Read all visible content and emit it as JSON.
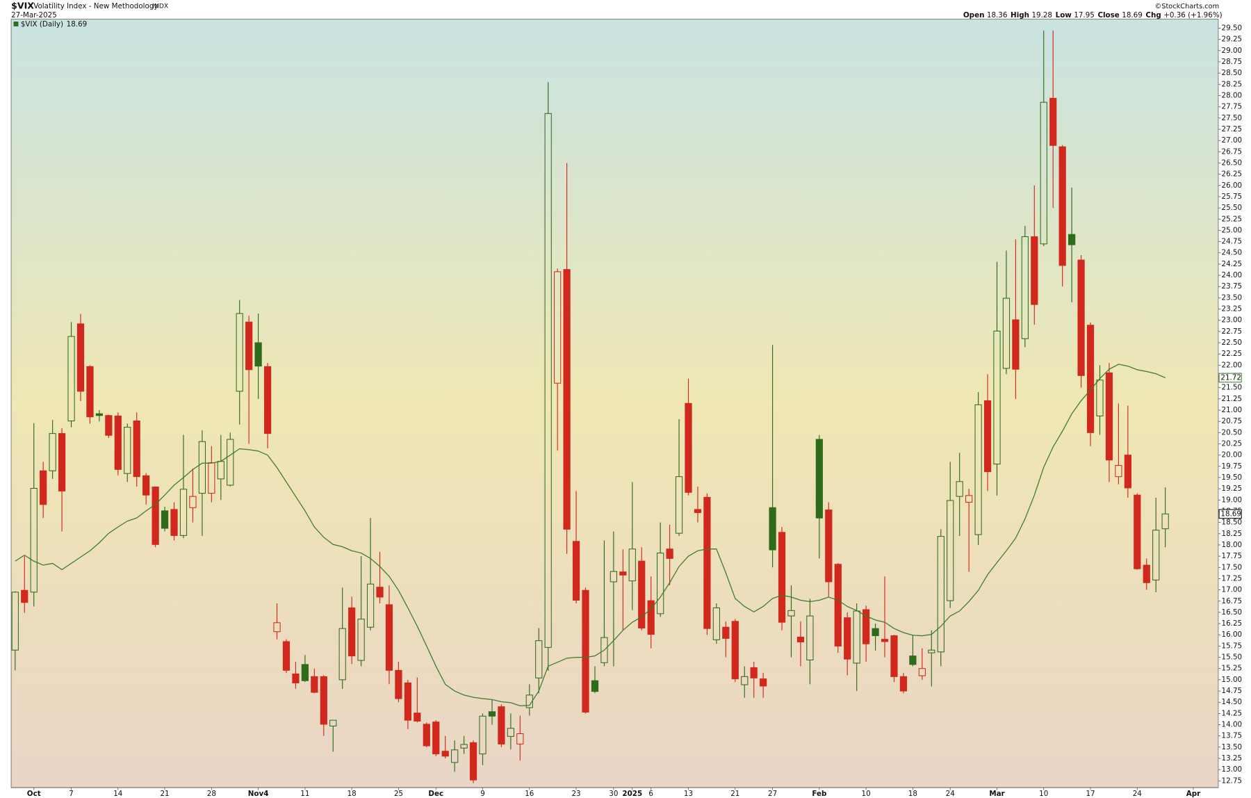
{
  "chart_data": {
    "type": "candlestick",
    "title": "$VIX",
    "subtitle": "Volatility Index - New Methodology",
    "exchange": "INDX",
    "date": "27-Mar-2025",
    "source": "©StockCharts.com",
    "quote_labels": {
      "open": "Open",
      "high": "High",
      "low": "Low",
      "close": "Close",
      "change": "Chg"
    },
    "change": "+0.36 (+1.96%)",
    "categories": [
      null,
      null,
      "Oct",
      null,
      null,
      null,
      "7",
      null,
      null,
      null,
      null,
      "14",
      null,
      null,
      null,
      null,
      "21",
      null,
      null,
      null,
      null,
      "28",
      null,
      null,
      null,
      null,
      "Nov4",
      null,
      null,
      null,
      null,
      "11",
      null,
      null,
      null,
      null,
      "18",
      null,
      null,
      null,
      null,
      "25",
      null,
      null,
      null,
      "Dec",
      null,
      null,
      null,
      null,
      "9",
      null,
      null,
      null,
      null,
      "16",
      null,
      null,
      null,
      null,
      "23",
      null,
      null,
      null,
      "30",
      null,
      "2025",
      null,
      "6",
      null,
      null,
      null,
      "13",
      null,
      null,
      null,
      null,
      "21",
      null,
      null,
      null,
      "27",
      null,
      null,
      null,
      null,
      "Feb",
      null,
      null,
      null,
      null,
      "10",
      null,
      null,
      null,
      null,
      "18",
      null,
      null,
      null,
      "24",
      null,
      null,
      null,
      null,
      "Mar",
      null,
      null,
      null,
      null,
      "10",
      null,
      null,
      null,
      null,
      "17",
      null,
      null,
      null,
      null,
      "24",
      null,
      null,
      null,
      null,
      null,
      "Apr"
    ],
    "series": [
      {
        "name": "$VIX (Daily)",
        "up_color": "#2e6b1a",
        "down_color": "#d0281c",
        "open": [
          15.66,
          16.99,
          16.95,
          19.65,
          19.65,
          20.48,
          20.76,
          22.92,
          21.97,
          20.92,
          20.88,
          20.87,
          19.59,
          20.76,
          19.54,
          19.29,
          18.76,
          18.79,
          18.21,
          18.83,
          19.15,
          19.15,
          19.47,
          19.33,
          21.42,
          22.96,
          22.5,
          21.97,
          16.07,
          15.85,
          15.13,
          15.34,
          15.07,
          15.07,
          13.97,
          15.0,
          16.6,
          15.43,
          16.17,
          17.06,
          16.67,
          15.21,
          14.93,
          14.26,
          14.01,
          14.06,
          13.41,
          13.16,
          13.48,
          13.6,
          13.35,
          14.29,
          14.4,
          13.74,
          13.57,
          14.38,
          15.04,
          15.72,
          21.6,
          24.13,
          18.08,
          16.99,
          14.98,
          15.38,
          17.18,
          17.4,
          17.2,
          17.64,
          16.76,
          16.47,
          17.91,
          18.26,
          21.15,
          18.79,
          19.06,
          15.89,
          16.17,
          16.3,
          14.89,
          15.27,
          15.02,
          18.83,
          18.28,
          16.42,
          15.95,
          15.44,
          20.35,
          18.78,
          17.57,
          16.38,
          15.37,
          16.56,
          16.14,
          15.9,
          15.98,
          15.07,
          15.53,
          15.09,
          15.6,
          15.62,
          16.76,
          19.08,
          18.95,
          18.23,
          21.21,
          19.8,
          21.93,
          23.01,
          22.59,
          24.86,
          24.7,
          27.94,
          26.86,
          24.91,
          24.34,
          22.89,
          20.87,
          21.83,
          19.52,
          20.0,
          19.11,
          17.55,
          17.22,
          18.36,
          null,
          null,
          null
        ],
        "high": [
          16.97,
          17.75,
          20.71,
          19.85,
          20.78,
          20.6,
          22.96,
          23.14,
          22.0,
          21.0,
          20.9,
          20.95,
          20.7,
          20.95,
          19.6,
          19.3,
          18.85,
          18.95,
          20.45,
          19.7,
          20.55,
          20.2,
          20.45,
          20.5,
          23.45,
          23.1,
          23.15,
          22.05,
          16.7,
          15.9,
          15.4,
          15.55,
          15.25,
          15.1,
          14.1,
          17.05,
          16.85,
          17.75,
          18.6,
          17.85,
          17.1,
          15.4,
          15.0,
          15.05,
          14.05,
          14.1,
          13.75,
          13.65,
          13.75,
          13.65,
          14.25,
          14.55,
          14.45,
          14.25,
          14.2,
          14.9,
          16.15,
          28.3,
          24.15,
          26.5,
          19.2,
          17.05,
          15.3,
          18.1,
          18.3,
          17.9,
          19.4,
          17.95,
          17.3,
          18.5,
          18.45,
          20.8,
          21.7,
          19.3,
          19.15,
          16.7,
          16.3,
          16.35,
          15.3,
          15.4,
          15.15,
          22.45,
          18.4,
          17.1,
          16.3,
          16.8,
          20.45,
          18.95,
          17.6,
          16.5,
          16.7,
          16.65,
          16.25,
          17.3,
          16.0,
          15.15,
          16.0,
          15.7,
          16.1,
          18.35,
          19.85,
          20.05,
          19.25,
          21.4,
          21.8,
          24.3,
          24.55,
          24.8,
          25.1,
          26.0,
          29.45,
          29.45,
          26.9,
          25.95,
          24.45,
          22.95,
          22.0,
          22.05,
          21.15,
          21.1,
          19.15,
          17.7,
          19.05,
          19.28,
          null,
          null,
          null
        ],
        "low": [
          15.21,
          16.49,
          16.63,
          18.6,
          19.47,
          18.3,
          20.62,
          21.2,
          20.7,
          20.75,
          20.38,
          19.55,
          19.4,
          19.3,
          18.9,
          17.95,
          18.3,
          18.1,
          18.15,
          18.5,
          18.2,
          18.95,
          19.0,
          19.3,
          20.68,
          20.25,
          21.25,
          20.15,
          15.9,
          15.15,
          14.8,
          14.95,
          14.7,
          13.75,
          13.4,
          14.8,
          15.35,
          15.3,
          16.1,
          16.7,
          14.9,
          14.5,
          13.9,
          14.05,
          13.5,
          13.3,
          13.25,
          12.95,
          13.35,
          12.7,
          13.1,
          14.0,
          13.5,
          13.45,
          13.2,
          14.2,
          14.7,
          15.2,
          20.1,
          17.8,
          16.7,
          14.25,
          14.7,
          15.3,
          15.3,
          16.1,
          16.55,
          16.1,
          15.7,
          16.4,
          17.1,
          18.2,
          19.1,
          18.5,
          16.0,
          15.8,
          15.5,
          14.95,
          14.6,
          14.6,
          14.6,
          17.5,
          16.1,
          15.5,
          15.3,
          14.9,
          17.7,
          16.85,
          15.6,
          15.1,
          14.75,
          15.4,
          15.65,
          15.5,
          14.95,
          14.7,
          15.3,
          15.0,
          14.85,
          15.3,
          16.6,
          18.2,
          17.4,
          18.0,
          19.2,
          19.1,
          21.8,
          21.25,
          22.4,
          22.9,
          24.65,
          25.5,
          23.75,
          23.4,
          21.5,
          20.2,
          20.45,
          19.4,
          19.35,
          19.05,
          17.45,
          17.0,
          16.95,
          17.95,
          null,
          null,
          null
        ],
        "close": [
          16.95,
          16.72,
          19.26,
          18.9,
          20.48,
          19.2,
          22.64,
          21.42,
          20.85,
          20.88,
          20.44,
          19.68,
          20.62,
          19.52,
          19.11,
          18.01,
          18.37,
          18.21,
          19.24,
          19.08,
          20.3,
          19.83,
          19.86,
          20.35,
          23.15,
          21.9,
          21.98,
          20.48,
          16.27,
          15.21,
          14.93,
          14.98,
          14.72,
          14.01,
          14.1,
          16.14,
          15.53,
          16.35,
          17.13,
          16.84,
          15.21,
          14.58,
          14.1,
          14.08,
          13.53,
          13.35,
          13.3,
          13.44,
          13.56,
          12.77,
          14.19,
          14.19,
          13.57,
          13.92,
          13.8,
          14.66,
          15.87,
          27.6,
          24.08,
          18.35,
          16.77,
          14.28,
          14.74,
          15.94,
          17.41,
          17.33,
          17.91,
          16.15,
          16.01,
          17.82,
          17.7,
          19.52,
          19.17,
          18.72,
          16.14,
          16.6,
          15.92,
          15.02,
          15.07,
          15.04,
          14.86,
          17.89,
          16.28,
          16.54,
          15.84,
          16.42,
          18.6,
          17.18,
          15.75,
          15.46,
          16.53,
          15.8,
          15.98,
          15.85,
          15.07,
          14.75,
          15.34,
          15.25,
          15.66,
          18.19,
          18.99,
          19.41,
          19.1,
          21.12,
          19.63,
          22.76,
          23.49,
          21.91,
          24.86,
          23.35,
          27.85,
          26.89,
          24.22,
          24.68,
          21.77,
          20.5,
          21.67,
          19.89,
          19.77,
          19.27,
          17.47,
          17.16,
          18.33,
          18.69,
          null,
          null,
          null
        ]
      }
    ],
    "overlay": {
      "type": "line",
      "color": "#3d7a2a",
      "values": [
        17.64,
        17.77,
        17.64,
        17.55,
        17.59,
        17.45,
        17.59,
        17.73,
        17.87,
        18.05,
        18.26,
        18.4,
        18.53,
        18.6,
        18.76,
        18.9,
        19.11,
        19.33,
        19.5,
        19.68,
        19.82,
        19.82,
        19.86,
        20.0,
        20.14,
        20.12,
        20.09,
        20.0,
        19.72,
        19.4,
        19.08,
        18.76,
        18.4,
        18.17,
        18.01,
        17.96,
        17.87,
        17.82,
        17.7,
        17.52,
        17.3,
        16.99,
        16.6,
        16.19,
        15.75,
        15.3,
        14.9,
        14.75,
        14.66,
        14.61,
        14.58,
        14.56,
        14.51,
        14.49,
        14.42,
        14.43,
        14.75,
        15.3,
        15.39,
        15.48,
        15.5,
        15.5,
        15.53,
        15.66,
        15.87,
        16.1,
        16.28,
        16.4,
        16.58,
        16.84,
        17.16,
        17.52,
        17.75,
        17.87,
        17.91,
        17.91,
        17.38,
        16.81,
        16.63,
        16.51,
        16.63,
        16.81,
        16.88,
        16.84,
        16.77,
        16.74,
        16.77,
        16.84,
        16.77,
        16.63,
        16.54,
        16.42,
        16.33,
        16.28,
        16.14,
        16.05,
        15.99,
        15.98,
        16.01,
        16.19,
        16.42,
        16.53,
        16.74,
        16.99,
        17.34,
        17.61,
        17.87,
        18.15,
        18.58,
        19.11,
        19.73,
        20.18,
        20.53,
        20.92,
        21.21,
        21.45,
        21.7,
        21.91,
        22.02,
        21.98,
        21.9,
        21.86,
        21.81,
        21.72,
        null,
        null,
        null
      ]
    },
    "ylim": [
      12.6,
      29.7
    ],
    "yticks": [
      12.75,
      {
        "value": 13,
        "label": "13.00"
      },
      13.25,
      {
        "value": 13.5,
        "label": "13.50"
      },
      13.75,
      {
        "value": 14,
        "label": "14.00"
      },
      14.25,
      {
        "value": 14.5,
        "label": "14.50"
      },
      14.75,
      {
        "value": 15,
        "label": "15.00"
      },
      15.25,
      {
        "value": 15.5,
        "label": "15.50"
      },
      15.75,
      {
        "value": 16,
        "label": "16.00"
      },
      16.25,
      {
        "value": 16.5,
        "label": "16.50"
      },
      16.75,
      {
        "value": 17,
        "label": "17.00"
      },
      17.25,
      {
        "value": 17.5,
        "label": "17.50"
      },
      17.75,
      {
        "value": 18,
        "label": "18.00"
      },
      18.25,
      {
        "value": 18.5,
        "label": "18.50"
      },
      18.75,
      {
        "value": 19,
        "label": "19.00"
      },
      19.25,
      {
        "value": 19.5,
        "label": "19.50"
      },
      19.75,
      {
        "value": 20,
        "label": "20.00"
      },
      20.25,
      {
        "value": 20.5,
        "label": "20.50"
      },
      20.75,
      {
        "value": 21,
        "label": "21.00"
      },
      21.25,
      {
        "value": 21.5,
        "label": "21.50"
      },
      21.75,
      {
        "value": 22,
        "label": "22.00"
      },
      22.25,
      {
        "value": 22.5,
        "label": "22.50"
      },
      22.75,
      {
        "value": 23,
        "label": "23.00"
      },
      23.25,
      {
        "value": 23.5,
        "label": "23.50"
      },
      23.75,
      {
        "value": 24,
        "label": "24.00"
      },
      24.25,
      {
        "value": 24.5,
        "label": "24.50"
      },
      24.75,
      {
        "value": 25,
        "label": "25.00"
      },
      25.25,
      {
        "value": 25.5,
        "label": "25.50"
      },
      25.75,
      {
        "value": 26,
        "label": "26.00"
      },
      26.25,
      {
        "value": 26.5,
        "label": "26.50"
      },
      26.75,
      {
        "value": 27,
        "label": "27.00"
      },
      27.25,
      {
        "value": 27.5,
        "label": "27.50"
      },
      27.75,
      {
        "value": 28,
        "label": "28.00"
      },
      28.25,
      {
        "value": 28.5,
        "label": "28.50"
      },
      28.75,
      {
        "value": 29,
        "label": "29.00"
      },
      29.25,
      {
        "value": 29.5,
        "label": "29.50"
      }
    ]
  }
}
